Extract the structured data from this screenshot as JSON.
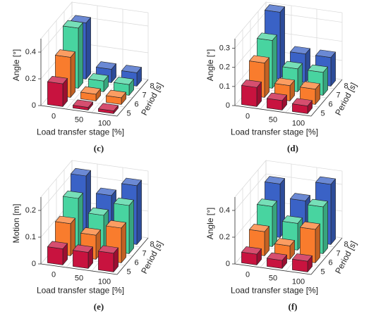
{
  "chart_data": [
    {
      "type": "bar3d",
      "caption": "(c)",
      "xlabel": "Load transfer stage [%]",
      "ylabel": "Period [s]",
      "zlabel": "Angle [°]",
      "categories": [
        "0",
        "50",
        "100"
      ],
      "series": [
        {
          "name": "5",
          "color": "#c8133f",
          "values": [
            0.17,
            0.02,
            0.02
          ]
        },
        {
          "name": "6",
          "color": "#f97c2d",
          "values": [
            0.3,
            0.05,
            0.05
          ]
        },
        {
          "name": "7",
          "color": "#48d4a0",
          "values": [
            0.45,
            0.08,
            0.08
          ]
        },
        {
          "name": "8",
          "color": "#3a62c6",
          "values": [
            0.42,
            0.1,
            0.1
          ]
        }
      ],
      "zlim": [
        0,
        0.5
      ],
      "zticks": [
        0,
        0.2,
        0.4
      ],
      "grid": true
    },
    {
      "type": "bar3d",
      "caption": "(d)",
      "xlabel": "Load transfer stage [%]",
      "ylabel": "Period [s]",
      "zlabel": "Angle [°]",
      "categories": [
        "0",
        "50",
        "100"
      ],
      "series": [
        {
          "name": "5",
          "color": "#c8133f",
          "values": [
            0.1,
            0.05,
            0.04
          ]
        },
        {
          "name": "6",
          "color": "#f97c2d",
          "values": [
            0.18,
            0.08,
            0.08
          ]
        },
        {
          "name": "7",
          "color": "#48d4a0",
          "values": [
            0.25,
            0.12,
            0.12
          ]
        },
        {
          "name": "8",
          "color": "#3a62c6",
          "values": [
            0.35,
            0.15,
            0.15
          ]
        }
      ],
      "zlim": [
        0,
        0.35
      ],
      "zticks": [
        0,
        0.1,
        0.2,
        0.3
      ],
      "grid": true
    },
    {
      "type": "bar3d",
      "caption": "(e)",
      "xlabel": "Load transfer stage [%]",
      "ylabel": "Period [s]",
      "zlabel": "Motion [m]",
      "categories": [
        "0",
        "50",
        "100"
      ],
      "series": [
        {
          "name": "5",
          "color": "#c8133f",
          "values": [
            0.06,
            0.06,
            0.07
          ]
        },
        {
          "name": "6",
          "color": "#f97c2d",
          "values": [
            0.12,
            0.09,
            0.13
          ]
        },
        {
          "name": "7",
          "color": "#48d4a0",
          "values": [
            0.18,
            0.13,
            0.18
          ]
        },
        {
          "name": "8",
          "color": "#3a62c6",
          "values": [
            0.23,
            0.17,
            0.22
          ]
        }
      ],
      "zlim": [
        0,
        0.25
      ],
      "zticks": [
        0,
        0.1,
        0.2
      ],
      "grid": true
    },
    {
      "type": "bar3d",
      "caption": "(f)",
      "xlabel": "Load transfer stage [%]",
      "ylabel": "Period [s]",
      "zlabel": "Angle [°]",
      "categories": [
        "0",
        "50",
        "100"
      ],
      "series": [
        {
          "name": "5",
          "color": "#c8133f",
          "values": [
            0.08,
            0.06,
            0.08
          ]
        },
        {
          "name": "6",
          "color": "#f97c2d",
          "values": [
            0.18,
            0.1,
            0.25
          ]
        },
        {
          "name": "7",
          "color": "#48d4a0",
          "values": [
            0.3,
            0.2,
            0.35
          ]
        },
        {
          "name": "8",
          "color": "#3a62c6",
          "values": [
            0.4,
            0.3,
            0.45
          ]
        }
      ],
      "zlim": [
        0,
        0.5
      ],
      "zticks": [
        0,
        0.2,
        0.4
      ],
      "grid": true
    }
  ]
}
